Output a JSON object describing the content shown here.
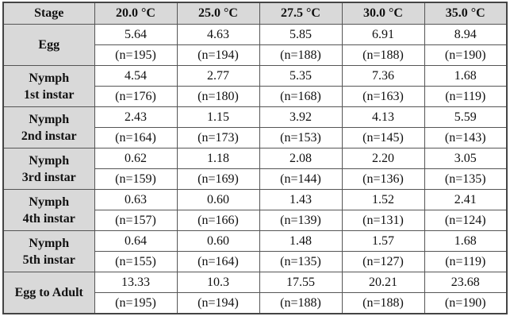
{
  "table": {
    "header": [
      "Stage",
      "20.0 °C",
      "25.0 °C",
      "27.5 °C",
      "30.0 °C",
      "35.0 °C"
    ],
    "rows": [
      {
        "stage": [
          "Egg"
        ],
        "values": [
          "5.64",
          "4.63",
          "5.85",
          "6.91",
          "8.94"
        ],
        "n": [
          "(n=195)",
          "(n=194)",
          "(n=188)",
          "(n=188)",
          "(n=190)"
        ]
      },
      {
        "stage": [
          "Nymph",
          "1st instar"
        ],
        "values": [
          "4.54",
          "2.77",
          "5.35",
          "7.36",
          "1.68"
        ],
        "n": [
          "(n=176)",
          "(n=180)",
          "(n=168)",
          "(n=163)",
          "(n=119)"
        ]
      },
      {
        "stage": [
          "Nymph",
          "2nd instar"
        ],
        "values": [
          "2.43",
          "1.15",
          "3.92",
          "4.13",
          "5.59"
        ],
        "n": [
          "(n=164)",
          "(n=173)",
          "(n=153)",
          "(n=145)",
          "(n=143)"
        ]
      },
      {
        "stage": [
          "Nymph",
          "3rd instar"
        ],
        "values": [
          "0.62",
          "1.18",
          "2.08",
          "2.20",
          "3.05"
        ],
        "n": [
          "(n=159)",
          "(n=169)",
          "(n=144)",
          "(n=136)",
          "(n=135)"
        ]
      },
      {
        "stage": [
          "Nymph",
          "4th instar"
        ],
        "values": [
          "0.63",
          "0.60",
          "1.43",
          "1.52",
          "2.41"
        ],
        "n": [
          "(n=157)",
          "(n=166)",
          "(n=139)",
          "(n=131)",
          "(n=124)"
        ]
      },
      {
        "stage": [
          "Nymph",
          "5th instar"
        ],
        "values": [
          "0.64",
          "0.60",
          "1.48",
          "1.57",
          "1.68"
        ],
        "n": [
          "(n=155)",
          "(n=164)",
          "(n=135)",
          "(n=127)",
          "(n=119)"
        ]
      },
      {
        "stage": [
          "Egg to Adult"
        ],
        "values": [
          "13.33",
          "10.3",
          "17.55",
          "20.21",
          "23.68"
        ],
        "n": [
          "(n=195)",
          "(n=194)",
          "(n=188)",
          "(n=188)",
          "(n=190)"
        ]
      }
    ]
  }
}
